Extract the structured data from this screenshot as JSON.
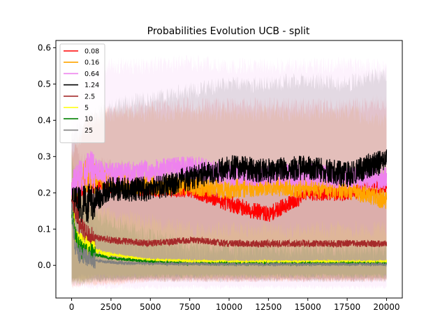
{
  "chart_data": {
    "type": "line",
    "title": "Probabilities Evolution UCB  - split",
    "xlabel": "",
    "ylabel": "",
    "xlim": [
      -1000,
      21000
    ],
    "ylim": [
      -0.09,
      0.62
    ],
    "xticks": [
      0,
      2500,
      5000,
      7500,
      10000,
      12500,
      15000,
      17500,
      20000
    ],
    "xtick_labels": [
      "0",
      "2500",
      "5000",
      "7500",
      "10000",
      "12500",
      "15000",
      "17500",
      "20000"
    ],
    "yticks": [
      0.0,
      0.1,
      0.2,
      0.3,
      0.4,
      0.5,
      0.6
    ],
    "ytick_labels": [
      "0.0",
      "0.1",
      "0.2",
      "0.3",
      "0.4",
      "0.5",
      "0.6"
    ],
    "grid": false,
    "legend_position": "top-left",
    "bands": "shaded min-max range per series",
    "series": [
      {
        "name": "0.08",
        "color": "#ff0000",
        "x": [
          0,
          1000,
          2500,
          5000,
          7500,
          10000,
          12500,
          15000,
          17500,
          20000
        ],
        "y": [
          0.18,
          0.24,
          0.22,
          0.21,
          0.21,
          0.17,
          0.14,
          0.2,
          0.2,
          0.22
        ],
        "band_low": [
          -0.06,
          -0.05,
          -0.05,
          -0.04,
          -0.04,
          -0.04,
          -0.04,
          -0.04,
          -0.04,
          -0.04
        ],
        "band_high": [
          0.3,
          0.4,
          0.42,
          0.44,
          0.44,
          0.44,
          0.44,
          0.44,
          0.44,
          0.45
        ]
      },
      {
        "name": "0.16",
        "color": "#ffa500",
        "x": [
          0,
          1000,
          2500,
          5000,
          7500,
          10000,
          12500,
          15000,
          17500,
          20000
        ],
        "y": [
          0.2,
          0.25,
          0.23,
          0.22,
          0.22,
          0.21,
          0.22,
          0.21,
          0.21,
          0.18
        ],
        "band_low": [
          -0.05,
          -0.05,
          -0.05,
          -0.04,
          -0.04,
          -0.04,
          -0.04,
          -0.04,
          -0.04,
          -0.04
        ],
        "band_high": [
          0.3,
          0.4,
          0.42,
          0.42,
          0.42,
          0.42,
          0.42,
          0.42,
          0.42,
          0.4
        ]
      },
      {
        "name": "0.64",
        "color": "#ee82ee",
        "x": [
          0,
          1000,
          2500,
          5000,
          7500,
          10000,
          12500,
          15000,
          17500,
          20000
        ],
        "y": [
          0.21,
          0.27,
          0.25,
          0.26,
          0.27,
          0.25,
          0.25,
          0.25,
          0.24,
          0.24
        ],
        "band_low": [
          -0.05,
          -0.06,
          -0.06,
          -0.06,
          -0.06,
          -0.06,
          -0.06,
          -0.06,
          -0.06,
          -0.06
        ],
        "band_high": [
          0.4,
          0.52,
          0.55,
          0.55,
          0.56,
          0.55,
          0.55,
          0.55,
          0.55,
          0.55
        ]
      },
      {
        "name": "1.24",
        "color": "#000000",
        "x": [
          0,
          1000,
          2500,
          5000,
          7500,
          10000,
          12500,
          15000,
          17500,
          20000
        ],
        "y": [
          0.16,
          0.17,
          0.21,
          0.21,
          0.24,
          0.27,
          0.26,
          0.27,
          0.25,
          0.29
        ],
        "band_low": [
          -0.04,
          -0.04,
          -0.04,
          -0.04,
          -0.04,
          -0.04,
          -0.04,
          -0.04,
          -0.04,
          -0.04
        ],
        "band_high": [
          0.35,
          0.4,
          0.44,
          0.46,
          0.48,
          0.5,
          0.5,
          0.51,
          0.5,
          0.53
        ]
      },
      {
        "name": "2.5",
        "color": "#a52a2a",
        "x": [
          0,
          500,
          1000,
          2500,
          5000,
          7500,
          10000,
          12500,
          15000,
          17500,
          20000
        ],
        "y": [
          0.18,
          0.11,
          0.08,
          0.07,
          0.06,
          0.07,
          0.06,
          0.06,
          0.06,
          0.06,
          0.06
        ],
        "band_low": [
          -0.04,
          -0.04,
          -0.04,
          -0.04,
          -0.04,
          -0.04,
          -0.04,
          -0.04,
          -0.04,
          -0.04,
          -0.04
        ],
        "band_high": [
          0.35,
          0.3,
          0.28,
          0.27,
          0.26,
          0.26,
          0.26,
          0.26,
          0.26,
          0.26,
          0.26
        ]
      },
      {
        "name": "5",
        "color": "#ffff00",
        "x": [
          0,
          300,
          700,
          1500,
          2500,
          5000,
          7500,
          10000,
          12500,
          15000,
          17500,
          20000
        ],
        "y": [
          0.16,
          0.08,
          0.06,
          0.04,
          0.03,
          0.015,
          0.012,
          0.01,
          0.01,
          0.01,
          0.01,
          0.01
        ],
        "band_low": [
          -0.04,
          -0.04,
          -0.04,
          -0.03,
          -0.03,
          -0.03,
          -0.03,
          -0.03,
          -0.03,
          -0.03,
          -0.03,
          -0.03
        ],
        "band_high": [
          0.3,
          0.24,
          0.2,
          0.16,
          0.14,
          0.12,
          0.1,
          0.1,
          0.1,
          0.1,
          0.1,
          0.1
        ]
      },
      {
        "name": "10",
        "color": "#008000",
        "x": [
          0,
          300,
          700,
          1500,
          2500,
          5000,
          7500,
          10000,
          12500,
          15000,
          17500,
          20000
        ],
        "y": [
          0.15,
          0.07,
          0.04,
          0.03,
          0.02,
          0.01,
          0.005,
          0.005,
          0.005,
          0.005,
          0.005,
          0.005
        ],
        "band_low": [
          -0.05,
          -0.05,
          -0.05,
          -0.04,
          -0.04,
          -0.03,
          -0.03,
          -0.03,
          -0.03,
          -0.03,
          -0.03,
          -0.03
        ],
        "band_high": [
          0.3,
          0.22,
          0.18,
          0.14,
          0.12,
          0.08,
          0.06,
          0.05,
          0.05,
          0.05,
          0.05,
          0.05
        ]
      },
      {
        "name": "25",
        "color": "#808080",
        "x": [
          0,
          200,
          500,
          1000,
          2000,
          3000,
          5000,
          7500,
          10000,
          12500,
          15000,
          17500,
          20000
        ],
        "y": [
          0.17,
          0.06,
          0.03,
          0.02,
          0.01,
          0.007,
          0.005,
          0.004,
          0.003,
          0.003,
          0.003,
          0.003,
          0.003
        ],
        "band_low": [
          -0.04,
          -0.04,
          -0.03,
          -0.03,
          -0.03,
          -0.03,
          -0.03,
          -0.03,
          -0.03,
          -0.03,
          -0.03,
          -0.03,
          -0.03
        ],
        "band_high": [
          0.3,
          0.25,
          0.18,
          0.12,
          0.08,
          0.06,
          0.05,
          0.04,
          0.04,
          0.04,
          0.04,
          0.04,
          0.04
        ]
      }
    ]
  }
}
